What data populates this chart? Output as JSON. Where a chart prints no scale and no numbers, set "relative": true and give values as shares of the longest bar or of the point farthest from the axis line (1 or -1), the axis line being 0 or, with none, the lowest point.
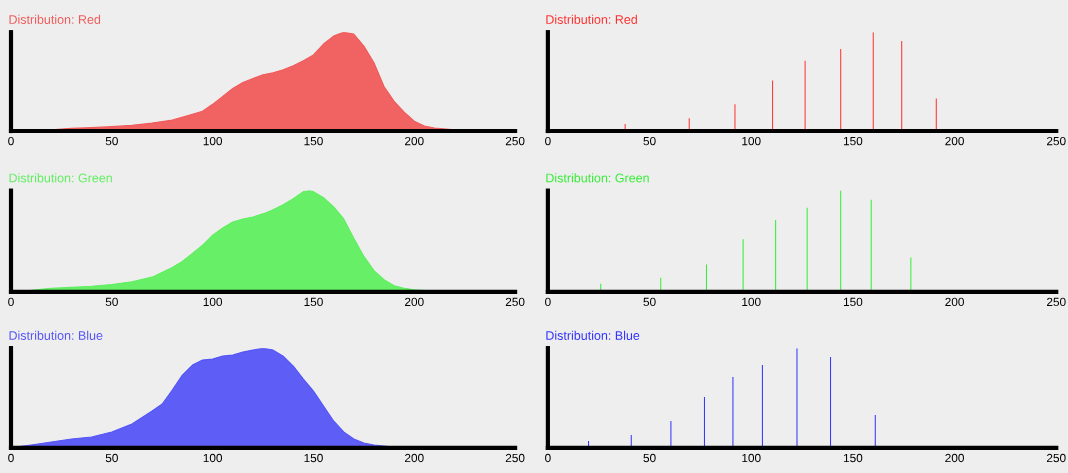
{
  "chart_data": [
    {
      "type": "area",
      "title": "Distribution: Red",
      "relative": true,
      "xlim": [
        0,
        250
      ],
      "xticks": [
        0,
        50,
        100,
        150,
        200,
        250
      ],
      "tick_labels": "x",
      "series": [
        {
          "color": "#f05a5a",
          "x": [
            0,
            20,
            30,
            40,
            50,
            60,
            70,
            80,
            90,
            95,
            100,
            105,
            110,
            115,
            120,
            125,
            130,
            135,
            140,
            145,
            150,
            155,
            160,
            165,
            170,
            175,
            180,
            185,
            190,
            195,
            200,
            205,
            210,
            220,
            230,
            250
          ],
          "values": [
            0.01,
            0.013,
            0.027,
            0.034,
            0.044,
            0.057,
            0.08,
            0.11,
            0.17,
            0.2,
            0.27,
            0.35,
            0.43,
            0.49,
            0.53,
            0.57,
            0.59,
            0.62,
            0.66,
            0.71,
            0.77,
            0.88,
            0.96,
            1.0,
            0.98,
            0.86,
            0.69,
            0.45,
            0.3,
            0.19,
            0.1,
            0.05,
            0.03,
            0.013,
            0.003,
            0
          ]
        }
      ]
    },
    {
      "type": "bar",
      "title": "Distribution: Red",
      "relative": true,
      "xlim": [
        0,
        250
      ],
      "xticks": [
        0,
        50,
        100,
        150,
        200,
        250
      ],
      "tick_labels": "x",
      "series": [
        {
          "color": "#ff3030",
          "x": [
            38,
            69.5,
            92,
            110.5,
            126.5,
            144,
            160,
            174,
            191
          ],
          "values": [
            0.07,
            0.13,
            0.27,
            0.51,
            0.71,
            0.83,
            1.0,
            0.91,
            0.33
          ]
        }
      ]
    },
    {
      "type": "area",
      "title": "Distribution: Green",
      "relative": true,
      "xlim": [
        0,
        250
      ],
      "xticks": [
        0,
        50,
        100,
        150,
        200,
        250
      ],
      "tick_labels": "x",
      "series": [
        {
          "color": "#5fee5f",
          "x": [
            0,
            10,
            20,
            30,
            40,
            50,
            60,
            70,
            80,
            85,
            90,
            95,
            100,
            105,
            110,
            115,
            120,
            125,
            130,
            135,
            140,
            145,
            148,
            150,
            155,
            160,
            165,
            170,
            175,
            180,
            185,
            190,
            195,
            200,
            210,
            220,
            250
          ],
          "values": [
            0.007,
            0.015,
            0.036,
            0.044,
            0.055,
            0.073,
            0.1,
            0.145,
            0.24,
            0.3,
            0.38,
            0.46,
            0.56,
            0.63,
            0.69,
            0.72,
            0.74,
            0.77,
            0.81,
            0.86,
            0.92,
            0.99,
            1.0,
            0.99,
            0.93,
            0.84,
            0.72,
            0.53,
            0.35,
            0.21,
            0.12,
            0.06,
            0.036,
            0.02,
            0.007,
            0.002,
            0
          ]
        }
      ]
    },
    {
      "type": "bar",
      "title": "Distribution: Green",
      "relative": true,
      "xlim": [
        0,
        250
      ],
      "xticks": [
        0,
        50,
        100,
        150,
        200,
        250
      ],
      "tick_labels": "x",
      "series": [
        {
          "color": "#33ee33",
          "x": [
            26,
            55.5,
            78,
            96,
            112,
            127.5,
            144,
            159,
            178.5
          ],
          "values": [
            0.08,
            0.14,
            0.27,
            0.52,
            0.71,
            0.83,
            1.0,
            0.91,
            0.34
          ]
        }
      ]
    },
    {
      "type": "area",
      "title": "Distribution: Blue",
      "relative": true,
      "xlim": [
        0,
        250
      ],
      "xticks": [
        0,
        50,
        100,
        150,
        200,
        250
      ],
      "tick_labels": "x",
      "series": [
        {
          "color": "#5555f5",
          "x": [
            0,
            10,
            20,
            30,
            40,
            50,
            60,
            70,
            75,
            80,
            85,
            90,
            95,
            100,
            105,
            110,
            115,
            120,
            125,
            130,
            135,
            140,
            145,
            150,
            155,
            160,
            165,
            170,
            175,
            180,
            190,
            200,
            250
          ],
          "values": [
            0.004,
            0.03,
            0.06,
            0.09,
            0.11,
            0.16,
            0.24,
            0.37,
            0.44,
            0.58,
            0.73,
            0.83,
            0.88,
            0.89,
            0.92,
            0.93,
            0.96,
            0.98,
            1.0,
            0.98,
            0.92,
            0.82,
            0.69,
            0.57,
            0.42,
            0.27,
            0.16,
            0.09,
            0.05,
            0.03,
            0.008,
            0,
            0
          ]
        }
      ]
    },
    {
      "type": "bar",
      "title": "Distribution: Blue",
      "relative": true,
      "xlim": [
        0,
        250
      ],
      "xticks": [
        0,
        50,
        100,
        150,
        200,
        250
      ],
      "tick_labels": "x",
      "series": [
        {
          "color": "#3333ff",
          "x": [
            20,
            41,
            60.5,
            77,
            91,
            105.5,
            122.5,
            139,
            161
          ],
          "values": [
            0.07,
            0.13,
            0.27,
            0.51,
            0.71,
            0.83,
            1.0,
            0.91,
            0.33
          ]
        }
      ]
    }
  ]
}
